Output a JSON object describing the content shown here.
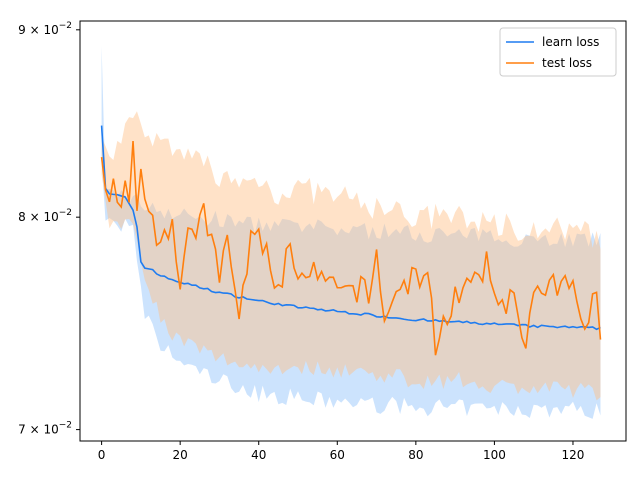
{
  "chart_data": {
    "type": "line",
    "title": "",
    "xlabel": "",
    "ylabel": "",
    "xlim": [
      -5.5,
      133.5
    ],
    "ylim": [
      0.0695,
      0.0905
    ],
    "yscale": "log",
    "grid": false,
    "legend_position": "top-right",
    "x_ticks": [
      0,
      20,
      40,
      60,
      80,
      100,
      120
    ],
    "x_tick_labels": [
      "0",
      "20",
      "40",
      "60",
      "80",
      "100",
      "120"
    ],
    "y_ticks": [
      0.07,
      0.08,
      0.09
    ],
    "y_tick_labels": [
      {
        "base": "7 × 10",
        "exp": "−2"
      },
      {
        "base": "8 × 10",
        "exp": "−2"
      },
      {
        "base": "9 × 10",
        "exp": "−2"
      }
    ],
    "series": [
      {
        "name": "learn loss",
        "color": "#1f7cf0",
        "band_color": "#8ec1fb",
        "mean_anchors": [
          [
            0,
            0.0848
          ],
          [
            1,
            0.0815
          ],
          [
            2,
            0.0812
          ],
          [
            6,
            0.081
          ],
          [
            8,
            0.0803
          ],
          [
            9,
            0.0795
          ],
          [
            10,
            0.0778
          ],
          [
            11,
            0.0775
          ],
          [
            13,
            0.0774
          ],
          [
            15,
            0.0771
          ],
          [
            20,
            0.0768
          ],
          [
            30,
            0.0763
          ],
          [
            40,
            0.0759
          ],
          [
            50,
            0.0756
          ],
          [
            60,
            0.0754
          ],
          [
            70,
            0.0752
          ],
          [
            80,
            0.075
          ],
          [
            90,
            0.0749
          ],
          [
            100,
            0.0748
          ],
          [
            110,
            0.0747
          ],
          [
            127,
            0.0746
          ]
        ],
        "upper_anchors": [
          [
            0,
            0.0887
          ],
          [
            1,
            0.0812
          ],
          [
            5,
            0.0812
          ],
          [
            10,
            0.0807
          ],
          [
            20,
            0.0801
          ],
          [
            40,
            0.0796
          ],
          [
            60,
            0.0794
          ],
          [
            80,
            0.0792
          ],
          [
            100,
            0.079
          ],
          [
            120,
            0.0789
          ],
          [
            127,
            0.0788
          ]
        ],
        "lower_anchors": [
          [
            0,
            0.083
          ],
          [
            1,
            0.0798
          ],
          [
            8,
            0.0795
          ],
          [
            9,
            0.0775
          ],
          [
            11,
            0.0752
          ],
          [
            15,
            0.0738
          ],
          [
            20,
            0.073
          ],
          [
            30,
            0.0722
          ],
          [
            40,
            0.0716
          ],
          [
            60,
            0.0712
          ],
          [
            80,
            0.071
          ],
          [
            100,
            0.0709
          ],
          [
            120,
            0.0709
          ],
          [
            127,
            0.0708
          ]
        ]
      },
      {
        "name": "test loss",
        "color": "#ff7f0e",
        "band_color": "#ffbe85",
        "mean_anchors": [
          [
            0,
            0.0835
          ],
          [
            1,
            0.0813
          ],
          [
            2,
            0.0808
          ],
          [
            3,
            0.0826
          ],
          [
            4,
            0.0808
          ],
          [
            5,
            0.0805
          ],
          [
            6,
            0.0817
          ],
          [
            7,
            0.0801
          ],
          [
            8,
            0.0835
          ],
          [
            9,
            0.08
          ],
          [
            10,
            0.0824
          ],
          [
            12,
            0.0805
          ],
          [
            14,
            0.0793
          ],
          [
            18,
            0.0797
          ],
          [
            20,
            0.0768
          ],
          [
            22,
            0.0798
          ],
          [
            24,
            0.0785
          ],
          [
            26,
            0.0804
          ],
          [
            28,
            0.0787
          ],
          [
            30,
            0.0772
          ],
          [
            32,
            0.0786
          ],
          [
            35,
            0.0752
          ],
          [
            38,
            0.0787
          ],
          [
            40,
            0.0793
          ],
          [
            44,
            0.077
          ],
          [
            46,
            0.0767
          ],
          [
            48,
            0.0792
          ],
          [
            50,
            0.0766
          ],
          [
            55,
            0.0772
          ],
          [
            60,
            0.0762
          ],
          [
            65,
            0.0765
          ],
          [
            68,
            0.0762
          ],
          [
            70,
            0.078
          ],
          [
            72,
            0.0752
          ],
          [
            76,
            0.0765
          ],
          [
            80,
            0.0772
          ],
          [
            83,
            0.0768
          ],
          [
            85,
            0.074
          ],
          [
            90,
            0.0762
          ],
          [
            95,
            0.0766
          ],
          [
            98,
            0.0776
          ],
          [
            100,
            0.0762
          ],
          [
            105,
            0.0758
          ],
          [
            108,
            0.0742
          ],
          [
            110,
            0.076
          ],
          [
            115,
            0.0765
          ],
          [
            120,
            0.0766
          ],
          [
            124,
            0.0748
          ],
          [
            126,
            0.0765
          ],
          [
            127,
            0.0742
          ]
        ],
        "upper_anchors": [
          [
            0,
            0.0848
          ],
          [
            2,
            0.0835
          ],
          [
            5,
            0.0835
          ],
          [
            8,
            0.0856
          ],
          [
            10,
            0.085
          ],
          [
            15,
            0.0836
          ],
          [
            20,
            0.083
          ],
          [
            25,
            0.083
          ],
          [
            30,
            0.0822
          ],
          [
            35,
            0.0815
          ],
          [
            40,
            0.082
          ],
          [
            45,
            0.0812
          ],
          [
            50,
            0.0815
          ],
          [
            60,
            0.081
          ],
          [
            70,
            0.0805
          ],
          [
            80,
            0.08
          ],
          [
            90,
            0.08
          ],
          [
            100,
            0.0797
          ],
          [
            110,
            0.0794
          ],
          [
            120,
            0.0793
          ],
          [
            127,
            0.079
          ]
        ],
        "lower_anchors": [
          [
            0,
            0.0822
          ],
          [
            2,
            0.0798
          ],
          [
            5,
            0.0795
          ],
          [
            8,
            0.08
          ],
          [
            10,
            0.0778
          ],
          [
            15,
            0.075
          ],
          [
            20,
            0.074
          ],
          [
            30,
            0.0732
          ],
          [
            40,
            0.0728
          ],
          [
            50,
            0.0728
          ],
          [
            60,
            0.0727
          ],
          [
            70,
            0.0725
          ],
          [
            80,
            0.0722
          ],
          [
            90,
            0.0722
          ],
          [
            100,
            0.072
          ],
          [
            110,
            0.0718
          ],
          [
            120,
            0.0718
          ],
          [
            127,
            0.0716
          ]
        ]
      }
    ],
    "n_points": 128
  }
}
